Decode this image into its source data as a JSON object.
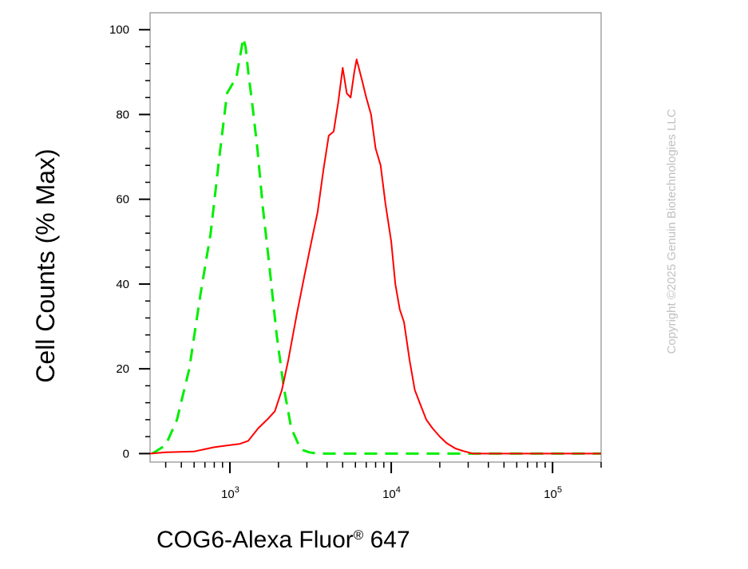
{
  "chart_data": {
    "type": "line",
    "xscale": "log",
    "xlabel": "COG6-Alexa Fluor",
    "xlabel_mark": "®",
    "xlabel_suffix": " 647",
    "ylabel": "Cell Counts (% Max)",
    "xlim": [
      320,
      200000
    ],
    "ylim": [
      -2,
      104
    ],
    "x_ticks": [
      {
        "value": 1000,
        "base": "10",
        "exp": "3"
      },
      {
        "value": 10000,
        "base": "10",
        "exp": "4"
      },
      {
        "value": 100000,
        "base": "10",
        "exp": "5"
      }
    ],
    "y_ticks": [
      0,
      20,
      40,
      60,
      80,
      100
    ],
    "grid": false,
    "series": [
      {
        "color": "#00ee00",
        "style": "dashed",
        "x": [
          330,
          400,
          470,
          560,
          660,
          760,
          860,
          960,
          1030,
          1100,
          1160,
          1210,
          1250,
          1300,
          1380,
          1480,
          1600,
          1760,
          1950,
          2150,
          2400,
          2750,
          3100,
          3500,
          5000,
          10000,
          30000,
          100000,
          200000
        ],
        "y": [
          0,
          2,
          8,
          20,
          38,
          52,
          70,
          85,
          87,
          89,
          94,
          98,
          96,
          90,
          82,
          72,
          58,
          44,
          28,
          16,
          6,
          1,
          0.3,
          0,
          0,
          0,
          0,
          0,
          0
        ]
      },
      {
        "color": "#ff0000",
        "style": "solid",
        "x": [
          320,
          400,
          600,
          800,
          1000,
          1150,
          1300,
          1500,
          1700,
          1900,
          2100,
          2300,
          2600,
          2900,
          3200,
          3500,
          3800,
          4100,
          4400,
          4700,
          5000,
          5300,
          5600,
          5900,
          6100,
          6300,
          6600,
          7000,
          7500,
          8000,
          8600,
          9200,
          10000,
          10600,
          11300,
          12000,
          13000,
          14000,
          15000,
          16500,
          18000,
          20000,
          22000,
          25000,
          28000,
          32000,
          40000,
          60000,
          100000,
          200000
        ],
        "y": [
          0,
          0.3,
          0.5,
          1.5,
          2,
          2.3,
          3,
          6,
          8,
          10,
          15,
          22,
          33,
          42,
          50,
          57,
          67,
          75,
          76,
          83,
          91,
          85,
          84,
          90,
          93,
          91,
          88,
          84,
          80,
          72,
          68,
          59,
          50,
          40,
          34,
          31,
          22,
          15,
          12,
          8,
          6,
          4,
          2.5,
          1.2,
          0.6,
          0,
          0,
          0,
          0,
          0
        ]
      }
    ]
  },
  "copyright": "Copyright ©2025 Genuin Biotechnologies LLC"
}
